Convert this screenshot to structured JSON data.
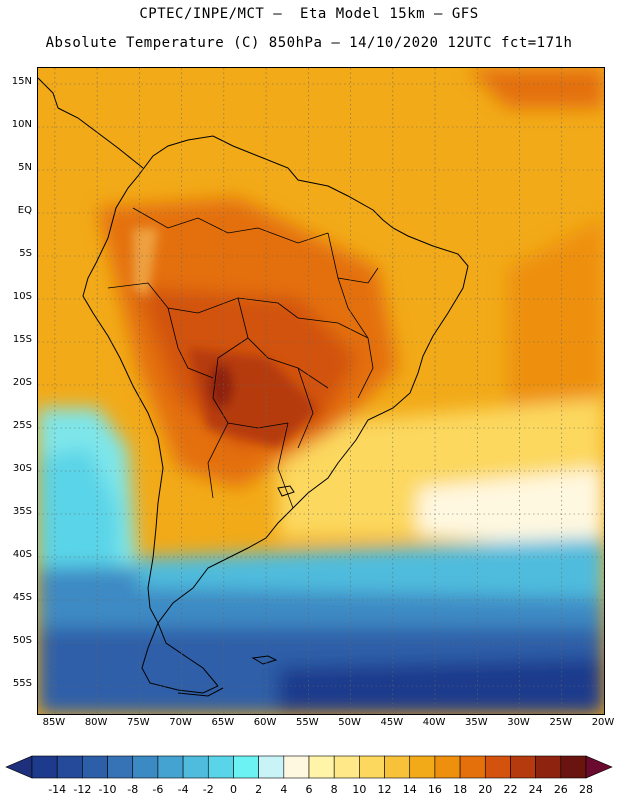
{
  "header": {
    "line1": "CPTEC/INPE/MCT –  Eta Model 15km – GFS",
    "line2": "Absolute Temperature (C) 850hPa – 14/10/2020 12UTC fct=171h"
  },
  "map": {
    "lat_labels": [
      "15N",
      "10N",
      "5N",
      "EQ",
      "5S",
      "10S",
      "15S",
      "20S",
      "25S",
      "30S",
      "35S",
      "40S",
      "45S",
      "50S",
      "55S"
    ],
    "lon_labels": [
      "85W",
      "80W",
      "75W",
      "70W",
      "65W",
      "60W",
      "55W",
      "50W",
      "45W",
      "40W",
      "35W",
      "30W",
      "25W",
      "20W"
    ],
    "lat_values": [
      15,
      10,
      5,
      0,
      -5,
      -10,
      -15,
      -20,
      -25,
      -30,
      -35,
      -40,
      -45,
      -50,
      -55
    ],
    "lon_values": [
      -85,
      -80,
      -75,
      -70,
      -65,
      -60,
      -55,
      -50,
      -45,
      -40,
      -35,
      -30,
      -25,
      -20
    ]
  },
  "colorbar": {
    "labels": [
      "-14",
      "-12",
      "-10",
      "-8",
      "-6",
      "-4",
      "-2",
      "0",
      "2",
      "4",
      "6",
      "8",
      "10",
      "12",
      "14",
      "16",
      "18",
      "20",
      "22",
      "24",
      "26",
      "28"
    ],
    "colors": [
      "#1e3a8c",
      "#254a9a",
      "#2d5ea8",
      "#3573b6",
      "#3c8ac4",
      "#45a3d1",
      "#4fbcdd",
      "#5ad4e8",
      "#6cf2f2",
      "#c8f4f8",
      "#fff8e0",
      "#fff4a8",
      "#ffe888",
      "#fcd85e",
      "#f7c23a",
      "#f2aa18",
      "#ee900e",
      "#e4700c",
      "#d2520e",
      "#b53a0e",
      "#8e2410",
      "#6a1410"
    ],
    "low_arrow_color": "#1e2f7c",
    "high_arrow_color": "#6a0a2e"
  }
}
